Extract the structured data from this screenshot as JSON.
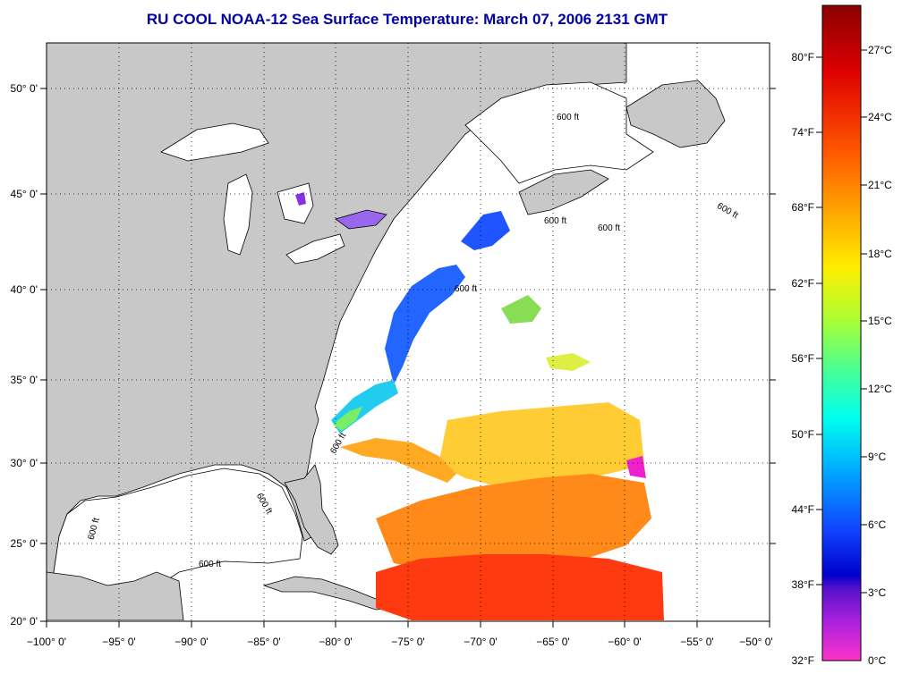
{
  "title": "RU COOL  NOAA-12  Sea Surface Temperature:  March 07, 2006 2131 GMT",
  "map": {
    "lon_range": [
      -100,
      -50
    ],
    "lat_range": [
      20,
      52.5
    ],
    "lon_ticks": [
      "−100° 0'",
      "−95° 0'",
      "−90° 0'",
      "−85° 0'",
      "−80° 0'",
      "−75° 0'",
      "−70° 0'",
      "−65° 0'",
      "−60° 0'",
      "−55° 0'",
      "−50° 0'"
    ],
    "lat_ticks": [
      "20° 0'",
      "25° 0'",
      "30° 0'",
      "35° 0'",
      "40° 0'",
      "45° 0'",
      "50° 0'"
    ],
    "contour_label": "600 ft",
    "grid": "dotted",
    "land_color": "#c8c8c8",
    "no_data_color": "#ffffff"
  },
  "colorbar": {
    "fahrenheit_labels": [
      "80°F",
      "74°F",
      "68°F",
      "62°F",
      "56°F",
      "50°F",
      "44°F",
      "38°F",
      "32°F"
    ],
    "celsius_labels": [
      "27°C",
      "24°C",
      "21°C",
      "18°C",
      "15°C",
      "12°C",
      "9°C",
      "6°C",
      "3°C",
      "0°C"
    ],
    "colors": [
      "#8b0000",
      "#d40000",
      "#ff2a00",
      "#ff7f00",
      "#ffd700",
      "#d4ff2a",
      "#55ff88",
      "#00ffee",
      "#00aaff",
      "#1155ff",
      "#0000dd",
      "#8822dd",
      "#ff33cc"
    ]
  }
}
